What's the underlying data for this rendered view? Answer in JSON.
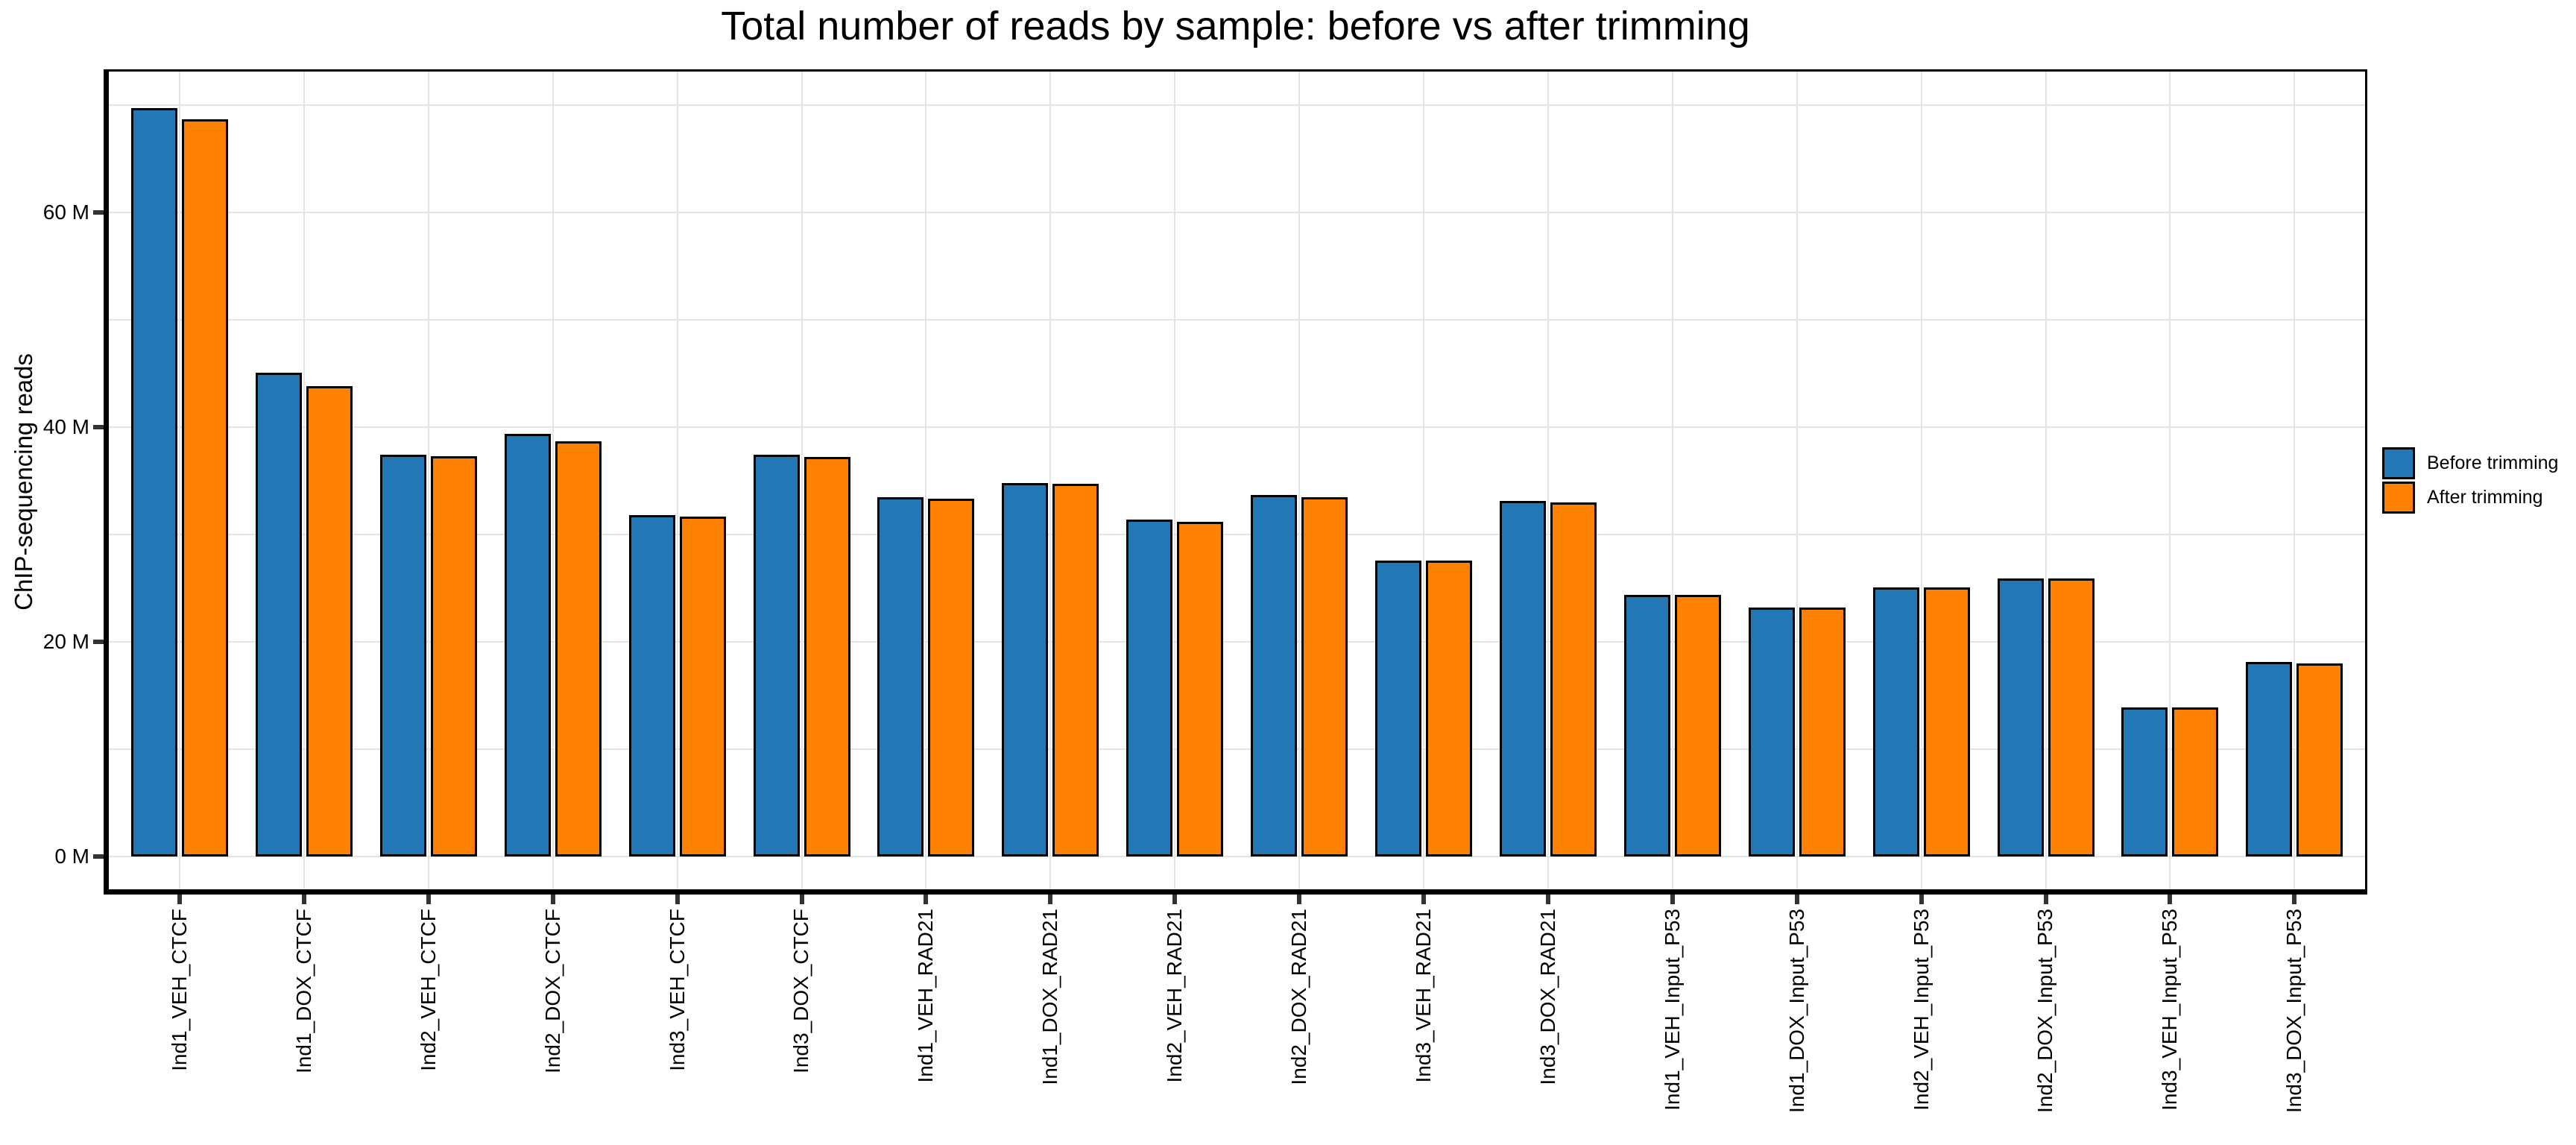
{
  "chart_data": {
    "type": "bar",
    "title": "Total number of reads by sample: before vs after trimming",
    "xlabel": "",
    "ylabel": "ChIP-sequencing reads",
    "unit": "millions of reads",
    "ylim": [
      0,
      73
    ],
    "grid": true,
    "grid_step": 10,
    "legend_position": "right-center",
    "yticks": [
      {
        "value": 0,
        "label": "0 M"
      },
      {
        "value": 20,
        "label": "20 M"
      },
      {
        "value": 40,
        "label": "40 M"
      },
      {
        "value": 60,
        "label": "60 M"
      }
    ],
    "categories": [
      "Ind1_VEH_CTCF",
      "Ind1_DOX_CTCF",
      "Ind2_VEH_CTCF",
      "Ind2_DOX_CTCF",
      "Ind3_VEH_CTCF",
      "Ind3_DOX_CTCF",
      "Ind1_VEH_RAD21",
      "Ind1_DOX_RAD21",
      "Ind2_VEH_RAD21",
      "Ind2_DOX_RAD21",
      "Ind3_VEH_RAD21",
      "Ind3_DOX_RAD21",
      "Ind1_VEH_Input_P53",
      "Ind1_DOX_Input_P53",
      "Ind2_VEH_Input_P53",
      "Ind2_DOX_Input_P53",
      "Ind3_VEH_Input_P53",
      "Ind3_DOX_Input_P53"
    ],
    "series": [
      {
        "name": "Before trimming",
        "color": "#2277b5",
        "values": [
          69.7,
          45.1,
          37.4,
          39.4,
          31.8,
          37.4,
          33.5,
          34.8,
          31.4,
          33.7,
          27.6,
          33.1,
          24.4,
          23.2,
          25.1,
          25.9,
          13.9,
          18.1
        ]
      },
      {
        "name": "After trimming",
        "color": "#ff8104",
        "values": [
          68.7,
          43.8,
          37.3,
          38.7,
          31.7,
          37.2,
          33.3,
          34.7,
          31.2,
          33.5,
          27.6,
          33.0,
          24.4,
          23.2,
          25.1,
          25.9,
          13.9,
          18.0
        ]
      }
    ],
    "style": {
      "grid_color": "#e4e4e4",
      "tick_color": "#333333",
      "spine_color": "#000000",
      "bar_border_color": "#000000",
      "text_color": "#000000",
      "background": "#ffffff"
    }
  }
}
